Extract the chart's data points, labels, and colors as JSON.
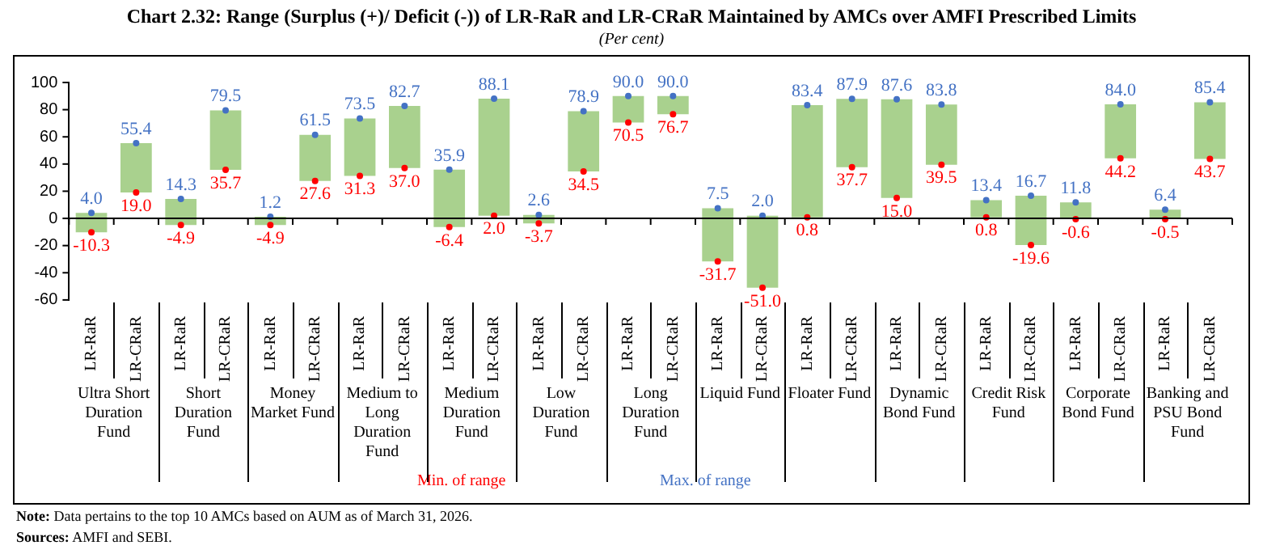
{
  "chart_data": {
    "type": "bar",
    "title": "Chart 2.32: Range (Surplus (+)/ Deficit (-)) of LR-RaR and LR-CRaR Maintained by AMCs over AMFI Prescribed Limits",
    "subtitle": "(Per cent)",
    "categories": [
      "LR-RaR",
      "LR-CRaR",
      "LR-RaR",
      "LR-CRaR",
      "LR-RaR",
      "LR-CRaR",
      "LR-RaR",
      "LR-CRaR",
      "LR-RaR",
      "LR-CRaR",
      "LR-RaR",
      "LR-CRaR",
      "LR-RaR",
      "LR-CRaR",
      "LR-RaR",
      "LR-CRaR",
      "LR-RaR",
      "LR-CRaR",
      "LR-RaR",
      "LR-CRaR",
      "LR-RaR",
      "LR-CRaR",
      "LR-RaR",
      "LR-CRaR",
      "LR-RaR",
      "LR-CRaR"
    ],
    "series": [
      {
        "color": "#a9d18e",
        "base": [
          -10.3,
          19.0,
          -4.9,
          35.7,
          -4.9,
          27.6,
          31.3,
          37.0,
          -6.4,
          2.0,
          -3.7,
          34.5,
          70.5,
          76.7,
          -31.7,
          -51.0,
          0.8,
          37.7,
          15.0,
          39.5,
          0.8,
          -19.6,
          -0.6,
          44.2,
          -0.5,
          43.7
        ],
        "values": [
          14.3,
          36.4,
          19.2,
          43.8,
          6.1,
          33.9,
          42.2,
          45.7,
          42.3,
          86.1,
          6.3,
          44.4,
          19.5,
          13.3,
          39.2,
          53.0,
          82.6,
          50.2,
          72.6,
          44.3,
          12.6,
          36.3,
          12.4,
          39.8,
          6.9,
          41.7
        ]
      },
      {
        "type": "scatter",
        "name": "Min. of range",
        "color": "#ff0000",
        "values": [
          -10.3,
          19.0,
          -4.9,
          35.7,
          -4.9,
          27.6,
          31.3,
          37.0,
          -6.4,
          2.0,
          -3.7,
          34.5,
          70.5,
          76.7,
          -31.7,
          -51.0,
          0.8,
          37.7,
          15.0,
          39.5,
          0.8,
          -19.6,
          -0.6,
          44.2,
          -0.5,
          43.7
        ],
        "value_labels": [
          "-10.3",
          "19.0",
          "-4.9",
          "35.7",
          "-4.9",
          "27.6",
          "31.3",
          "37.0",
          "-6.4",
          "2.0",
          "-3.7",
          "34.5",
          "70.5",
          "76.7",
          "-31.7",
          "-51.0",
          "0.8",
          "37.7",
          "15.0",
          "39.5",
          "0.8",
          "-19.6",
          "-0.6",
          "44.2",
          "-0.5",
          "43.7"
        ]
      },
      {
        "type": "scatter",
        "name": "Max. of range",
        "color": "#4472c4",
        "values": [
          4.0,
          55.4,
          14.3,
          79.5,
          1.2,
          61.5,
          73.5,
          82.7,
          35.9,
          88.1,
          2.6,
          78.9,
          90.0,
          90.0,
          7.5,
          2.0,
          83.4,
          87.9,
          87.6,
          83.8,
          13.4,
          16.7,
          11.8,
          84.0,
          6.4,
          85.4
        ],
        "value_labels": [
          "4.0",
          "55.4",
          "14.3",
          "79.5",
          "1.2",
          "61.5",
          "73.5",
          "82.7",
          "35.9",
          "88.1",
          "2.6",
          "78.9",
          "90.0",
          "90.0",
          "7.5",
          "2.0",
          "83.4",
          "87.9",
          "87.6",
          "83.8",
          "13.4",
          "16.7",
          "11.8",
          "84.0",
          "6.4",
          "85.4"
        ]
      }
    ],
    "marker": "circle",
    "ylim": [
      -60,
      100
    ],
    "yticks": [
      -60,
      -40,
      -20,
      0,
      20,
      40,
      60,
      80,
      100
    ],
    "annotations": [
      "Note: Data pertains to the top 10 AMCs based on AUM as of March 31, 2026.",
      "Sources: AMFI and SEBI.",
      "Ultra Short Duration Fund",
      "Short Duration Fund",
      "Money Market Fund",
      "Medium to Long Duration Fund",
      "Medium Duration Fund",
      "Low Duration Fund",
      "Long Duration Fund",
      "Liquid Fund",
      "Floater Fund",
      "Dynamic Bond Fund",
      "Credit Risk Fund",
      "Corporate Bond Fund",
      "Banking and PSU Bond Fund"
    ]
  }
}
